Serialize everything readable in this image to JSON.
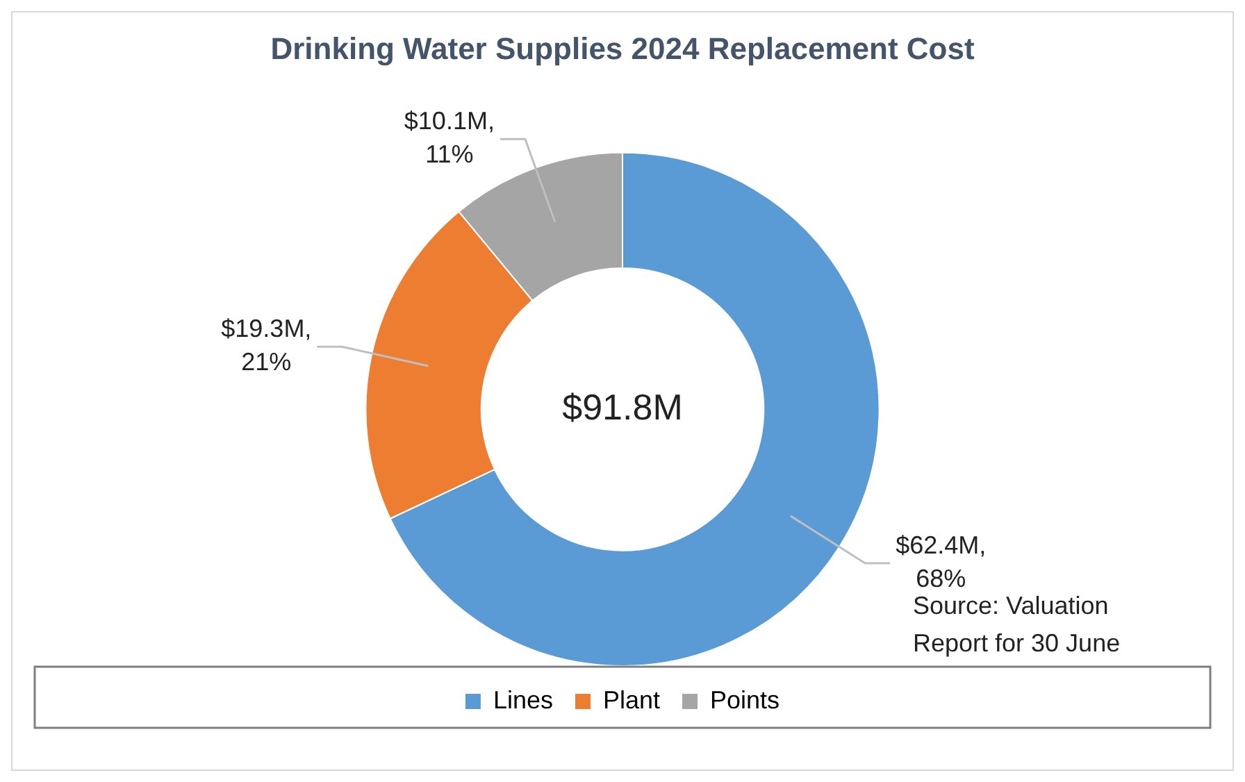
{
  "chart_data": {
    "type": "donut",
    "title": "Drinking Water Supplies 2024 Replacement Cost",
    "categories": [
      "Lines",
      "Plant",
      "Points"
    ],
    "values": [
      68,
      21,
      11
    ],
    "colors": [
      "#5b9bd5",
      "#ed7d31",
      "#a5a5a5"
    ],
    "value_labels": [
      "$62.4M,\n68%",
      "$19.3M,\n21%",
      "$10.1M,\n11%"
    ],
    "annotations": [
      "$91.8M",
      "Source: Valuation Report for 30 June"
    ],
    "legend": "bottom"
  }
}
